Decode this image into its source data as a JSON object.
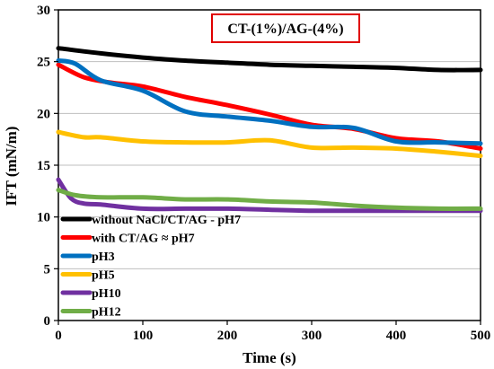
{
  "chart_data": {
    "type": "line",
    "title": "CT-(1%)/AG-(4%)",
    "xlabel": "Time (s)",
    "ylabel": "IFT (mN/m)",
    "xlim": [
      0,
      500
    ],
    "ylim": [
      0,
      30
    ],
    "xticks": [
      0,
      100,
      200,
      300,
      400,
      500
    ],
    "yticks": [
      0,
      5,
      10,
      15,
      20,
      25,
      30
    ],
    "grid": "horizontal",
    "legend_position": "bottom-left",
    "series": [
      {
        "name": "without NaCl/CT/AG - pH7",
        "color": "#000000",
        "points": [
          [
            0,
            26.3
          ],
          [
            50,
            25.8
          ],
          [
            100,
            25.4
          ],
          [
            150,
            25.1
          ],
          [
            200,
            24.9
          ],
          [
            250,
            24.7
          ],
          [
            300,
            24.6
          ],
          [
            350,
            24.5
          ],
          [
            400,
            24.4
          ],
          [
            450,
            24.2
          ],
          [
            500,
            24.2
          ]
        ]
      },
      {
        "name": "with CT/AG ≈ pH7",
        "color": "#ff0000",
        "points": [
          [
            0,
            24.7
          ],
          [
            30,
            23.5
          ],
          [
            60,
            23.0
          ],
          [
            100,
            22.6
          ],
          [
            150,
            21.6
          ],
          [
            200,
            20.8
          ],
          [
            250,
            19.9
          ],
          [
            300,
            18.9
          ],
          [
            350,
            18.5
          ],
          [
            400,
            17.6
          ],
          [
            450,
            17.3
          ],
          [
            500,
            16.6
          ]
        ]
      },
      {
        "name": "pH3",
        "color": "#0070c0",
        "points": [
          [
            0,
            25.1
          ],
          [
            20,
            24.8
          ],
          [
            50,
            23.2
          ],
          [
            100,
            22.2
          ],
          [
            150,
            20.2
          ],
          [
            200,
            19.7
          ],
          [
            250,
            19.3
          ],
          [
            300,
            18.7
          ],
          [
            350,
            18.6
          ],
          [
            400,
            17.3
          ],
          [
            450,
            17.2
          ],
          [
            500,
            17.1
          ]
        ]
      },
      {
        "name": "pH5",
        "color": "#ffc000",
        "points": [
          [
            0,
            18.2
          ],
          [
            30,
            17.7
          ],
          [
            50,
            17.7
          ],
          [
            100,
            17.3
          ],
          [
            150,
            17.2
          ],
          [
            200,
            17.2
          ],
          [
            250,
            17.4
          ],
          [
            300,
            16.7
          ],
          [
            350,
            16.7
          ],
          [
            400,
            16.6
          ],
          [
            450,
            16.3
          ],
          [
            500,
            15.9
          ]
        ]
      },
      {
        "name": "pH10",
        "color": "#7030a0",
        "points": [
          [
            0,
            13.6
          ],
          [
            15,
            11.8
          ],
          [
            30,
            11.3
          ],
          [
            50,
            11.2
          ],
          [
            100,
            10.8
          ],
          [
            150,
            10.8
          ],
          [
            200,
            10.8
          ],
          [
            250,
            10.7
          ],
          [
            300,
            10.6
          ],
          [
            350,
            10.6
          ],
          [
            400,
            10.6
          ],
          [
            450,
            10.6
          ],
          [
            500,
            10.6
          ]
        ]
      },
      {
        "name": "pH12",
        "color": "#70ad47",
        "points": [
          [
            0,
            12.6
          ],
          [
            20,
            12.1
          ],
          [
            50,
            11.9
          ],
          [
            100,
            11.9
          ],
          [
            150,
            11.7
          ],
          [
            200,
            11.7
          ],
          [
            250,
            11.5
          ],
          [
            300,
            11.4
          ],
          [
            350,
            11.1
          ],
          [
            400,
            10.9
          ],
          [
            450,
            10.8
          ],
          [
            500,
            10.8
          ]
        ]
      }
    ]
  }
}
